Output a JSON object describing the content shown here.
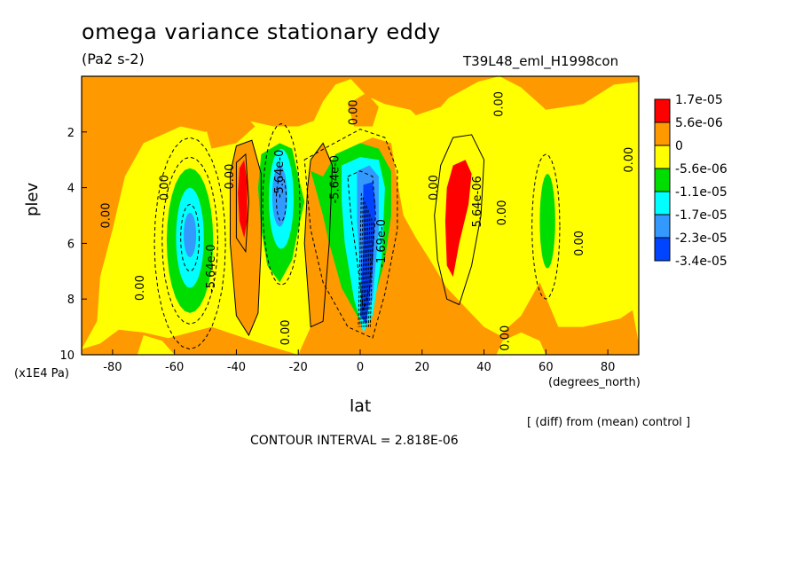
{
  "header": {
    "title": "omega variance stationary eddy",
    "units": "(Pa2 s-2)",
    "run_id": "T39L48_eml_H1998con"
  },
  "footer": {
    "x_unit_left": "(x1E4 Pa)",
    "x_unit_right": "(degrees_north)",
    "note": "[ (diff) from (mean) control ]",
    "contour_interval": "CONTOUR INTERVAL = 2.818E-06"
  },
  "chart_data": {
    "type": "heatmap",
    "title": "omega variance stationary eddy",
    "subtitle": "(Pa2 s-2)",
    "xlabel": "lat",
    "ylabel": "plev",
    "xlim": [
      -90,
      90
    ],
    "ylim": [
      10,
      0
    ],
    "x_ticks": [
      -80,
      -60,
      -40,
      -20,
      0,
      20,
      40,
      60,
      80
    ],
    "y_ticks": [
      2,
      4,
      6,
      8,
      10
    ],
    "legend": {
      "placement": "right",
      "labels": [
        "1.7e-05",
        "5.6e-06",
        "0",
        "-5.6e-06",
        "-1.1e-05",
        "-1.7e-05",
        "-2.3e-05",
        "-3.4e-05"
      ],
      "colors": [
        "#ff0000",
        "#ff9900",
        "#ffff00",
        "#00dd00",
        "#00ffff",
        "#3399ff",
        "#0044ff"
      ]
    },
    "contour_labels": [
      {
        "text": "0.00",
        "x": -82,
        "y": 5.0
      },
      {
        "text": "0.00",
        "x": -71,
        "y": 7.6
      },
      {
        "text": "0.00",
        "x": -63,
        "y": 4.0
      },
      {
        "text": "-5.64e-0",
        "x": -48,
        "y": 6.9
      },
      {
        "text": "0.00",
        "x": -42,
        "y": 3.6
      },
      {
        "text": "-5.64e-0",
        "x": -26,
        "y": 3.5
      },
      {
        "text": "0.00",
        "x": -24,
        "y": 9.2
      },
      {
        "text": "-5.64e-0",
        "x": -8,
        "y": 3.7
      },
      {
        "text": "0.00",
        "x": -2,
        "y": 1.3
      },
      {
        "text": "-1.69e-0",
        "x": 7,
        "y": 6.0
      },
      {
        "text": "0.00",
        "x": 24,
        "y": 4.0
      },
      {
        "text": "5.64e-06",
        "x": 38,
        "y": 4.5
      },
      {
        "text": "0.00",
        "x": 45,
        "y": 1.0
      },
      {
        "text": "0.00",
        "x": 46,
        "y": 4.9
      },
      {
        "text": "0.00",
        "x": 47,
        "y": 9.4
      },
      {
        "text": "0.00",
        "x": 71,
        "y": 6.0
      },
      {
        "text": "0.00",
        "x": 87,
        "y": 3.0
      }
    ],
    "features": [
      {
        "kind": "minimum",
        "lat": -55,
        "plev": 5.8,
        "level": "-1.7e-05"
      },
      {
        "kind": "minimum",
        "lat": -25,
        "plev": 4.2,
        "level": "-1.7e-05"
      },
      {
        "kind": "minimum",
        "lat": 5,
        "plev": 4.3,
        "level": "-2.3e-05"
      },
      {
        "kind": "minimum",
        "lat": 60,
        "plev": 5.3,
        "level": "-5.6e-06"
      },
      {
        "kind": "maximum",
        "lat": -38,
        "plev": 4.5,
        "level": "1.7e-05"
      },
      {
        "kind": "maximum",
        "lat": 32,
        "plev": 5.0,
        "level": "1.7e-05"
      }
    ]
  }
}
